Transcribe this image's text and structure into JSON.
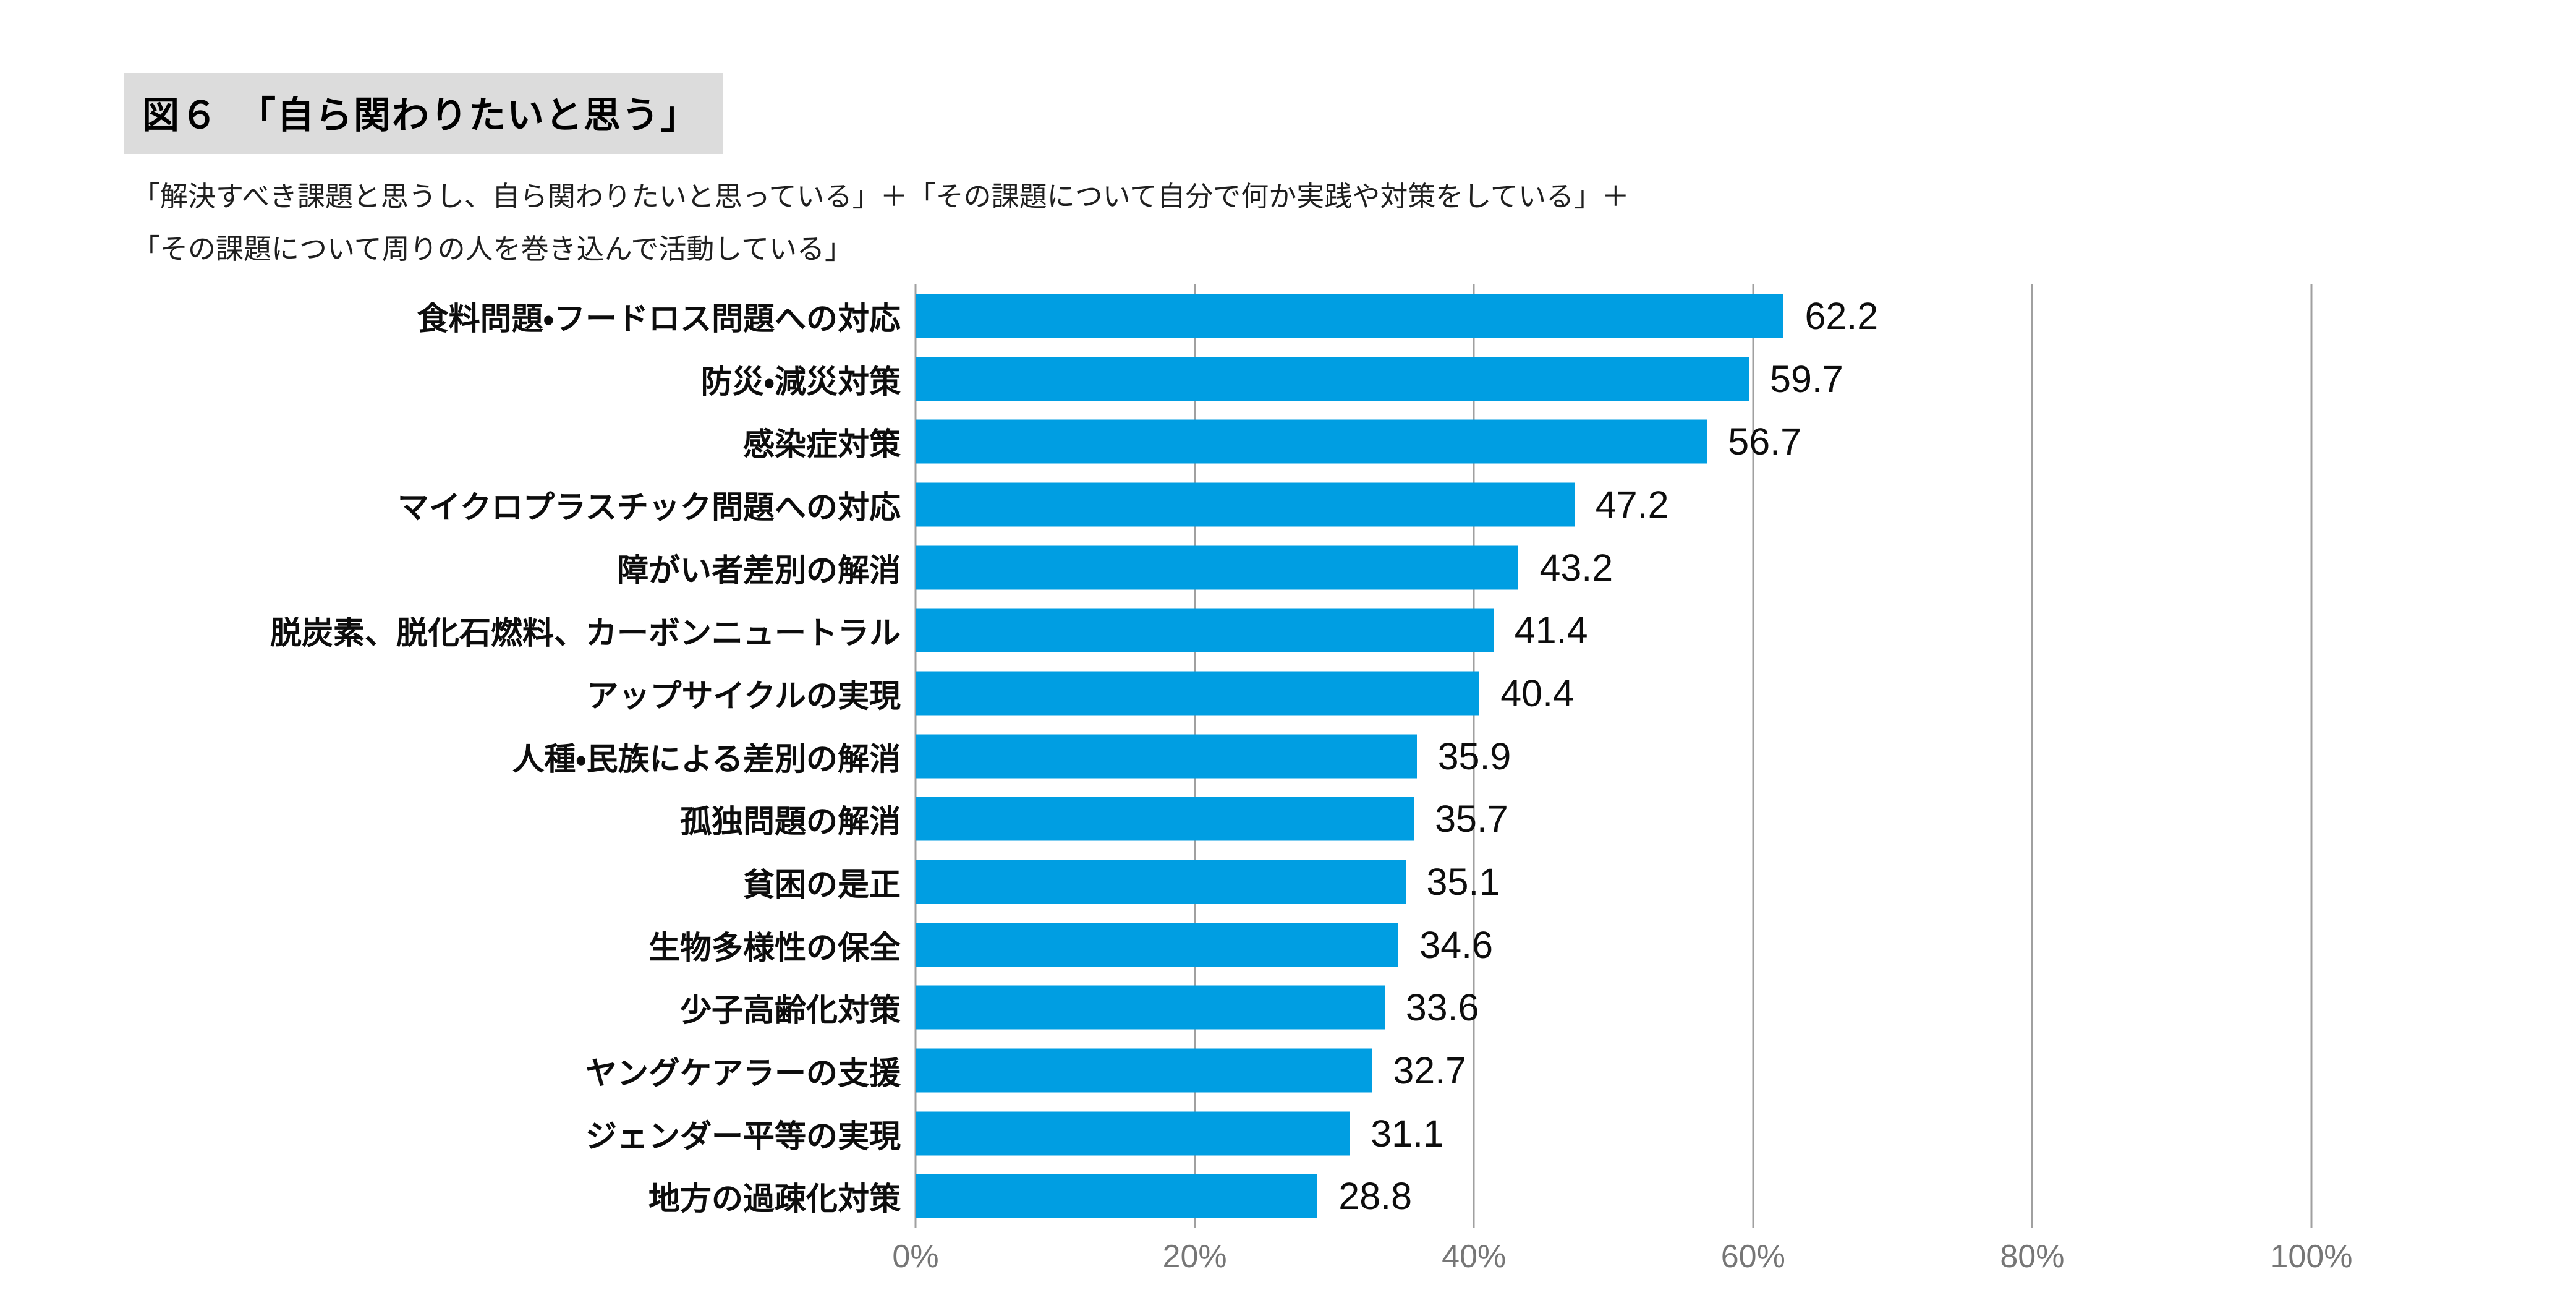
{
  "header": {
    "title": "図６　「自ら関わりたいと思う」",
    "subtitle_line1": "「解決すべき課題と思うし、自ら関わりたいと思っている」＋「その課題について自分で何か実践や対策をしている」＋",
    "subtitle_line2": "「その課題について周りの人を巻き込んで活動している」"
  },
  "colors": {
    "bar": "#009EE2",
    "title_background": "#DCDCDC",
    "gridline": "#A0A0A0",
    "axis_text": "#767676",
    "text": "#111111"
  },
  "chart_data": {
    "type": "bar",
    "orientation": "horizontal",
    "title": "図６　「自ら関わりたいと思う」",
    "subtitle": "「解決すべき課題と思うし、自ら関わりたいと思っている」＋「その課題について自分で何か実践や対策をしている」＋「その課題について周りの人を巻き込んで活動している」",
    "categories": [
      "食料問題・フードロス問題への対応",
      "防災・減災対策",
      "感染症対策",
      "マイクロプラスチック問題への対応",
      "障がい者差別の解消",
      "脱炭素、脱化石燃料、カーボンニュートラル",
      "アップサイクルの実現",
      "人種・民族による差別の解消",
      "孤独問題の解消",
      "貧困の是正",
      "生物多様性の保全",
      "少子高齢化対策",
      "ヤングケアラーの支援",
      "ジェンダー平等の実現",
      "地方の過疎化対策"
    ],
    "values": [
      62.2,
      59.7,
      56.7,
      47.2,
      43.2,
      41.4,
      40.4,
      35.9,
      35.7,
      35.1,
      34.6,
      33.6,
      32.7,
      31.1,
      28.8
    ],
    "xlabel": "",
    "ylabel": "",
    "xlim": [
      0,
      100
    ],
    "x_ticks": [
      "0%",
      "20%",
      "40%",
      "60%",
      "80%",
      "100%"
    ],
    "x_tick_values": [
      0,
      20,
      40,
      60,
      80,
      100
    ],
    "grid": true,
    "legend": false,
    "value_labels": "shown right of each bar, one decimal"
  }
}
